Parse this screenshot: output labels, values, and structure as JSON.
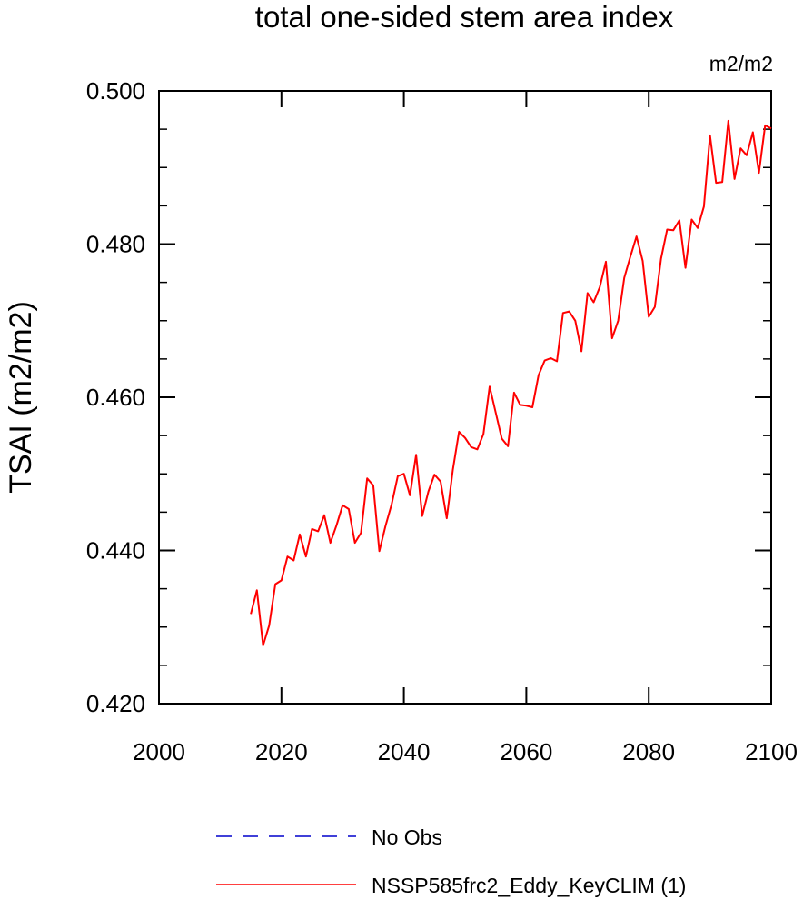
{
  "chart_data": {
    "type": "line",
    "title": "total one-sided stem area index",
    "units_label": "m2/m2",
    "ylabel": "TSAI  (m2/m2)",
    "xlabel": "",
    "xlim": [
      2000,
      2100
    ],
    "ylim": [
      0.42,
      0.5
    ],
    "x_ticks": [
      2000,
      2020,
      2040,
      2060,
      2080,
      2100
    ],
    "x_tick_labels": [
      "2000",
      "2020",
      "2040",
      "2060",
      "2080",
      "2100"
    ],
    "y_ticks": [
      0.42,
      0.44,
      0.46,
      0.48,
      0.5
    ],
    "y_tick_labels": [
      "0.420",
      "0.440",
      "0.460",
      "0.480",
      "0.500"
    ],
    "grid": false,
    "legend_placement": "bottom",
    "legend": [
      {
        "label": "No Obs",
        "color": "#0000cc",
        "style": "dashed"
      },
      {
        "label": "NSSP585frc2_Eddy_KeyCLIM (1)",
        "color": "#ff0000",
        "style": "solid"
      }
    ],
    "series": [
      {
        "name": "NSSP585frc2_Eddy_KeyCLIM (1)",
        "color": "#ff0000",
        "x": [
          2015,
          2016,
          2017,
          2018,
          2019,
          2020,
          2021,
          2022,
          2023,
          2024,
          2025,
          2026,
          2027,
          2028,
          2029,
          2030,
          2031,
          2032,
          2033,
          2034,
          2035,
          2036,
          2037,
          2038,
          2039,
          2040,
          2041,
          2042,
          2043,
          2044,
          2045,
          2046,
          2047,
          2048,
          2049,
          2050,
          2051,
          2052,
          2053,
          2054,
          2055,
          2056,
          2057,
          2058,
          2059,
          2060,
          2061,
          2062,
          2063,
          2064,
          2065,
          2066,
          2067,
          2068,
          2069,
          2070,
          2071,
          2072,
          2073,
          2074,
          2075,
          2076,
          2077,
          2078,
          2079,
          2080,
          2081,
          2082,
          2083,
          2084,
          2085,
          2086,
          2087,
          2088,
          2089,
          2090,
          2091,
          2092,
          2093,
          2094,
          2095,
          2096,
          2097,
          2098,
          2099,
          2100
        ],
        "values": [
          0.4317,
          0.4348,
          0.4276,
          0.4302,
          0.4356,
          0.4361,
          0.4392,
          0.4387,
          0.4421,
          0.4392,
          0.4428,
          0.4425,
          0.4446,
          0.441,
          0.4433,
          0.4459,
          0.4454,
          0.441,
          0.4423,
          0.4494,
          0.4485,
          0.4399,
          0.4432,
          0.446,
          0.4497,
          0.45,
          0.4472,
          0.4525,
          0.4445,
          0.4477,
          0.4499,
          0.449,
          0.4442,
          0.4505,
          0.4555,
          0.4547,
          0.4535,
          0.4532,
          0.4552,
          0.4614,
          0.458,
          0.4546,
          0.4536,
          0.4606,
          0.459,
          0.4589,
          0.4587,
          0.4629,
          0.4648,
          0.4651,
          0.4647,
          0.471,
          0.4712,
          0.47,
          0.466,
          0.4736,
          0.4724,
          0.4744,
          0.4777,
          0.4677,
          0.47,
          0.4756,
          0.4784,
          0.481,
          0.4778,
          0.4705,
          0.4718,
          0.4781,
          0.4819,
          0.4818,
          0.4831,
          0.4769,
          0.4832,
          0.4821,
          0.4849,
          0.4942,
          0.488,
          0.4881,
          0.4961,
          0.4885,
          0.4925,
          0.4916,
          0.4946,
          0.4893,
          0.4955,
          0.4951
        ]
      }
    ]
  }
}
